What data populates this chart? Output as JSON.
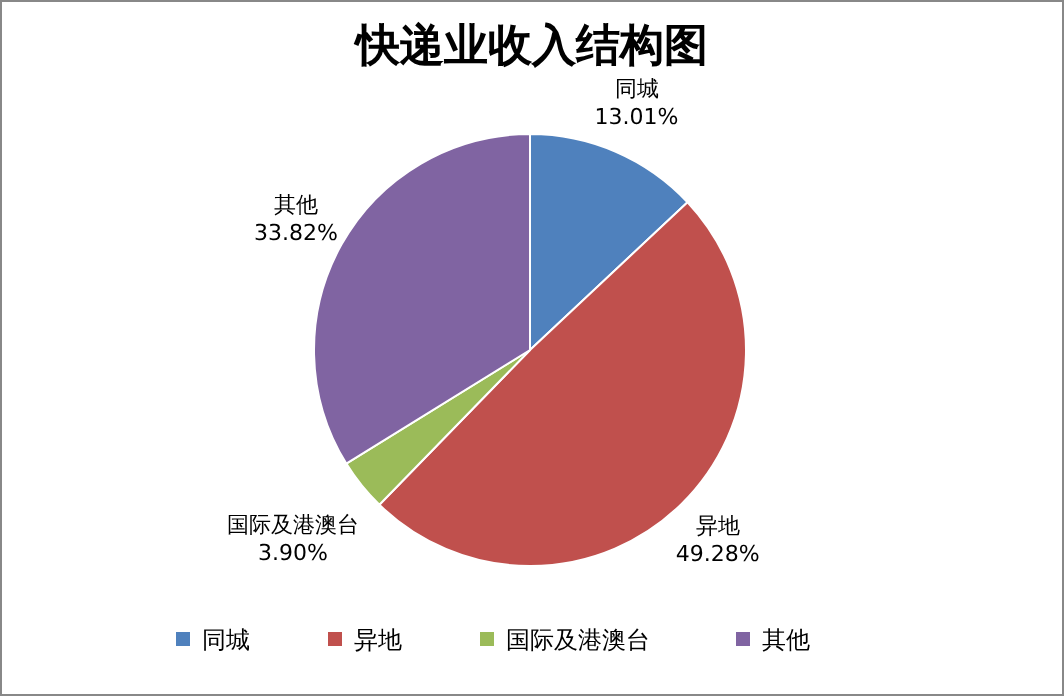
{
  "chart_data": {
    "type": "pie",
    "title": "快递业收入结构图",
    "categories": [
      "同城",
      "异地",
      "国际及港澳台",
      "其他"
    ],
    "values": [
      13.01,
      49.28,
      3.9,
      33.82
    ],
    "value_labels": [
      "13.01%",
      "49.28%",
      "3.90%",
      "33.82%"
    ],
    "colors": [
      "#4f81bd",
      "#c0504d",
      "#9bbb59",
      "#8064a2"
    ],
    "legend": "bottom"
  }
}
